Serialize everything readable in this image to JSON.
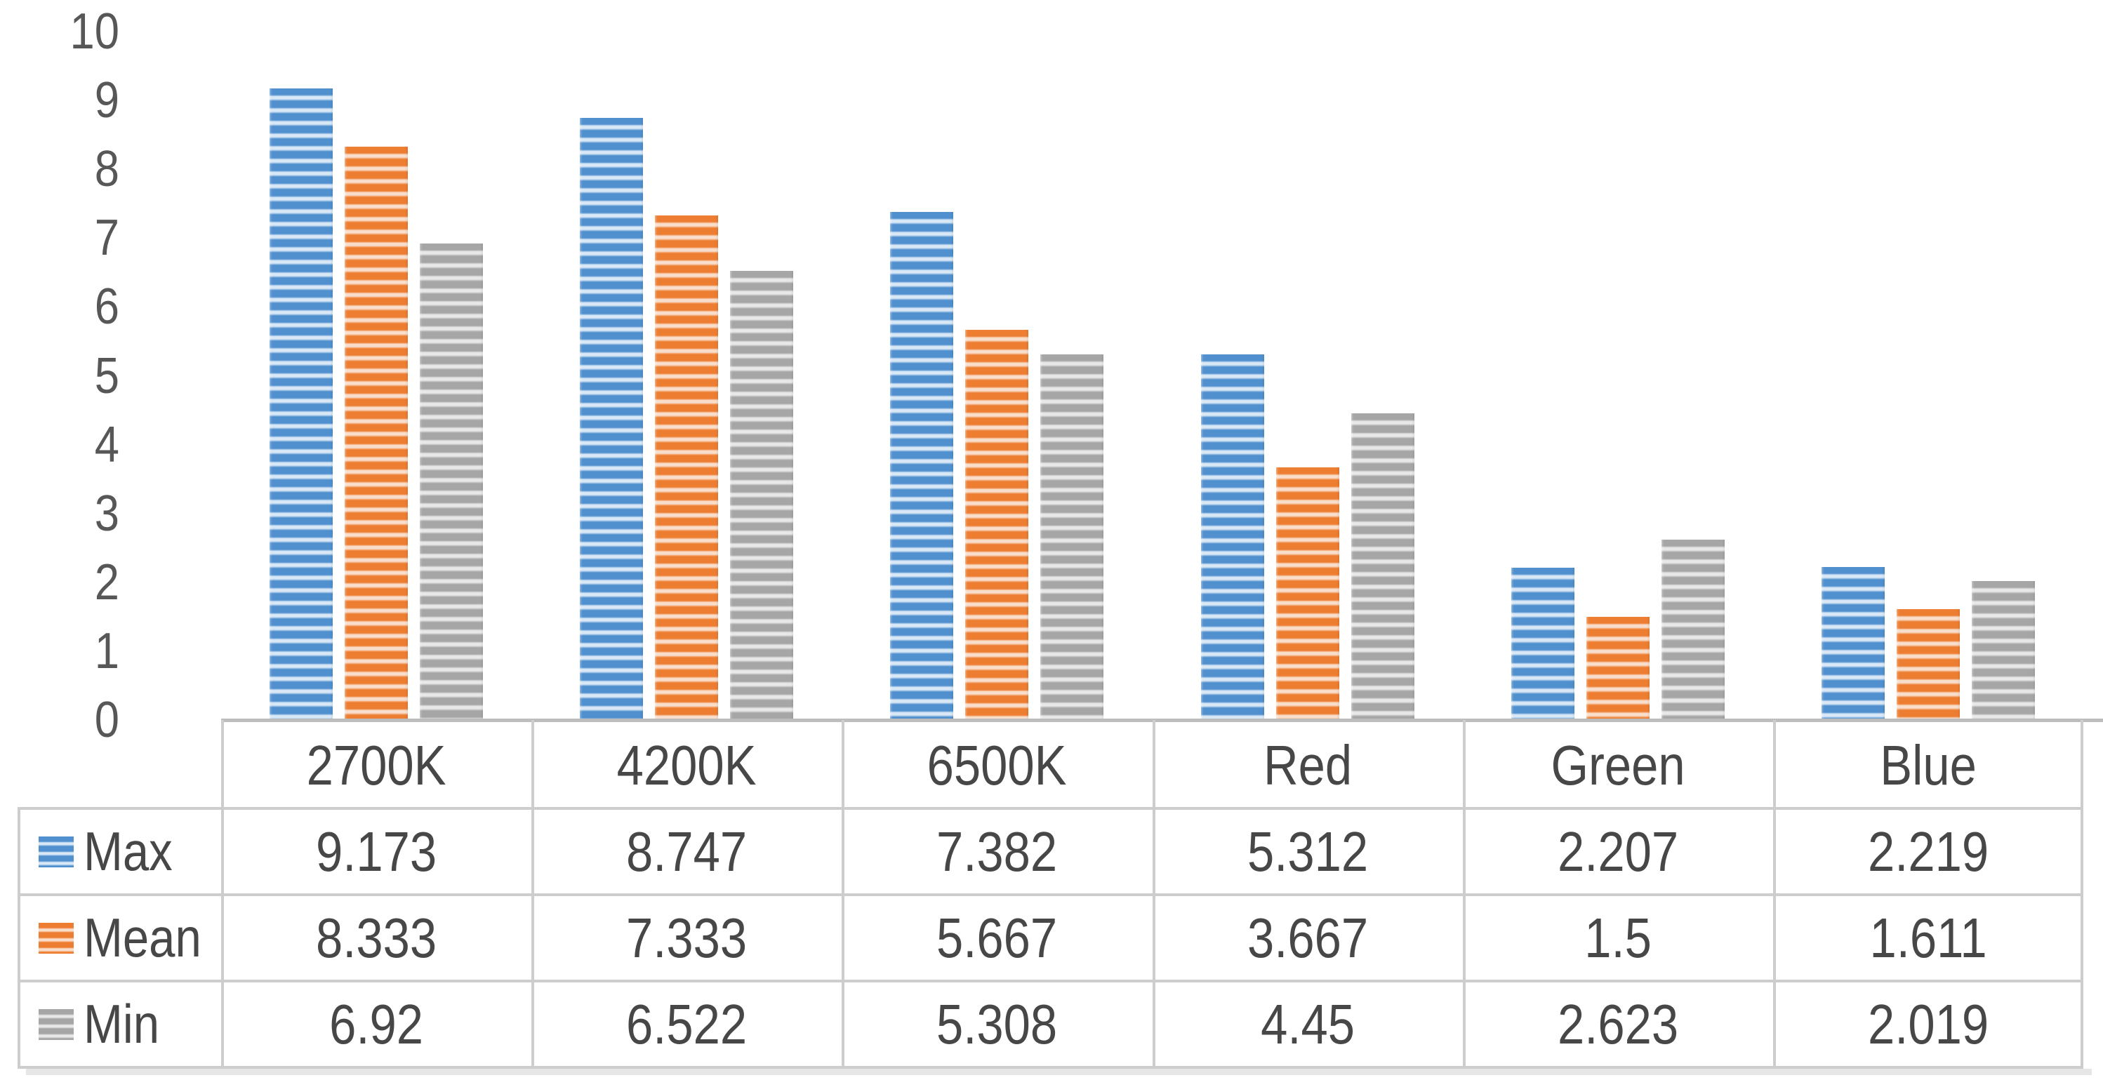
{
  "chart": {
    "title": "",
    "axis_text_color": "#575757",
    "table_text_color": "#474747",
    "border_color": "#CDCDCD",
    "baseline_color": "#BDBDBD",
    "outer_shadow_color": "#E6E6E6",
    "background_color": "#FFFFFF"
  },
  "chart_data": {
    "type": "bar",
    "title": "",
    "xlabel": "",
    "ylabel": "",
    "categories": [
      "2700K",
      "4200K",
      "6500K",
      "Red",
      "Green",
      "Blue"
    ],
    "series": [
      {
        "name": "Max",
        "color": "#5090CE",
        "stripe_light": "#D9E8F6",
        "values": [
          9.173,
          8.747,
          7.382,
          5.312,
          2.207,
          2.219
        ]
      },
      {
        "name": "Mean",
        "color": "#ED7D31",
        "stripe_light": "#F9DECB",
        "values": [
          8.333,
          7.333,
          5.667,
          3.667,
          1.5,
          1.611
        ]
      },
      {
        "name": "Min",
        "color": "#A6A6A6",
        "stripe_light": "#E8E8E8",
        "values": [
          6.92,
          6.522,
          5.308,
          4.45,
          2.623,
          2.019
        ]
      }
    ],
    "ylim": [
      0,
      10
    ],
    "yticks": [
      10,
      9,
      8,
      7,
      6,
      5,
      4,
      3,
      2,
      1,
      0
    ],
    "grid": false,
    "legend_position": "table-row-headers",
    "bar_pattern": "horizontal-stripes",
    "data_table_shown": true
  }
}
